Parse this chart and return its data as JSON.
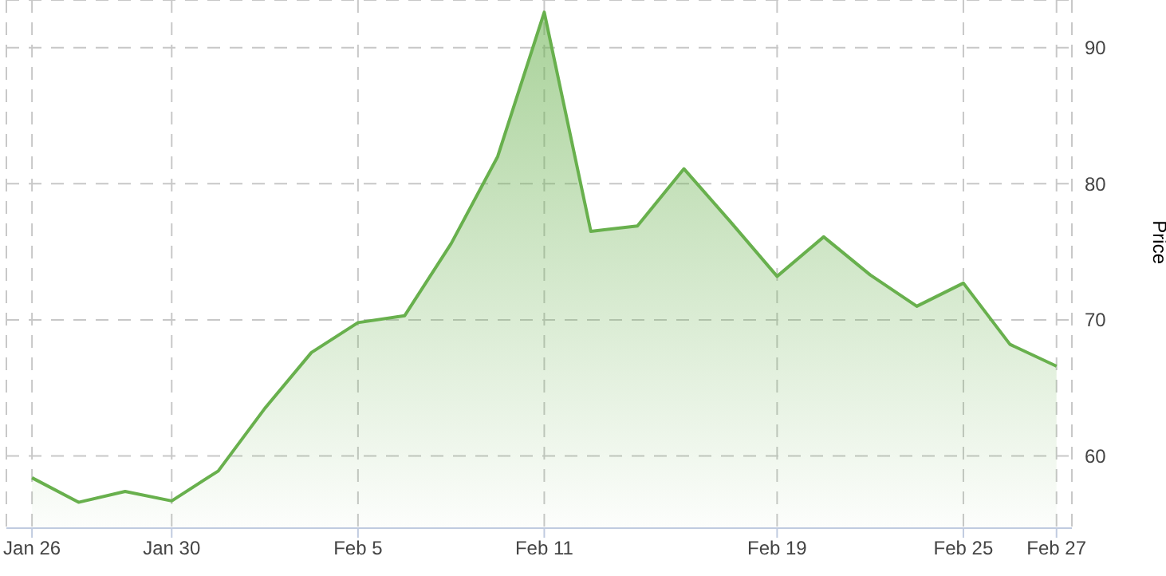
{
  "chart_data": {
    "type": "area",
    "ylabel": "Price",
    "categories": [
      "Jan 26",
      null,
      null,
      "Jan 30",
      null,
      null,
      null,
      "Feb 5",
      null,
      null,
      null,
      "Feb 11",
      null,
      null,
      null,
      null,
      "Feb 19",
      null,
      null,
      null,
      "Feb 25",
      null,
      "Feb 27"
    ],
    "values": [
      58.4,
      56.6,
      57.4,
      56.7,
      58.9,
      63.5,
      67.6,
      69.8,
      70.3,
      75.6,
      82.0,
      92.6,
      76.5,
      76.9,
      81.1,
      77.2,
      73.2,
      76.1,
      73.3,
      71.0,
      72.7,
      68.2,
      66.6
    ],
    "color": "#68b04d",
    "ylim": [
      54.7,
      93.5
    ],
    "yticks": [
      60,
      70,
      80,
      90
    ],
    "grid": true,
    "legend": false
  }
}
